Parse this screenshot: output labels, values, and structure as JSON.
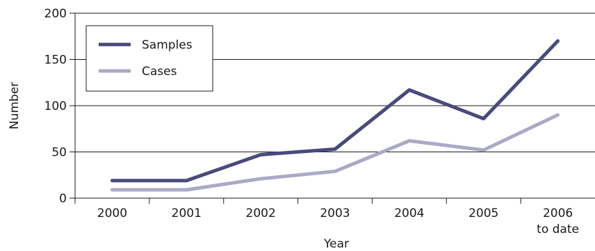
{
  "chart_data": {
    "type": "line",
    "categories": [
      "2000",
      "2001",
      "2002",
      "2003",
      "2004",
      "2005",
      "2006\nto date"
    ],
    "series": [
      {
        "name": "Samples",
        "values": [
          19,
          19,
          47,
          53,
          117,
          86,
          170
        ],
        "color": "#4a4a7c"
      },
      {
        "name": "Cases",
        "values": [
          9,
          9,
          21,
          29,
          62,
          52,
          90
        ],
        "color": "#aaa9c6"
      }
    ],
    "title": "",
    "xlabel": "Year",
    "ylabel": "Number",
    "ylim": [
      0,
      200
    ],
    "yticks": [
      "0",
      "50",
      "100",
      "150",
      "200"
    ],
    "grid": "horizontal",
    "legend": "top-left"
  }
}
